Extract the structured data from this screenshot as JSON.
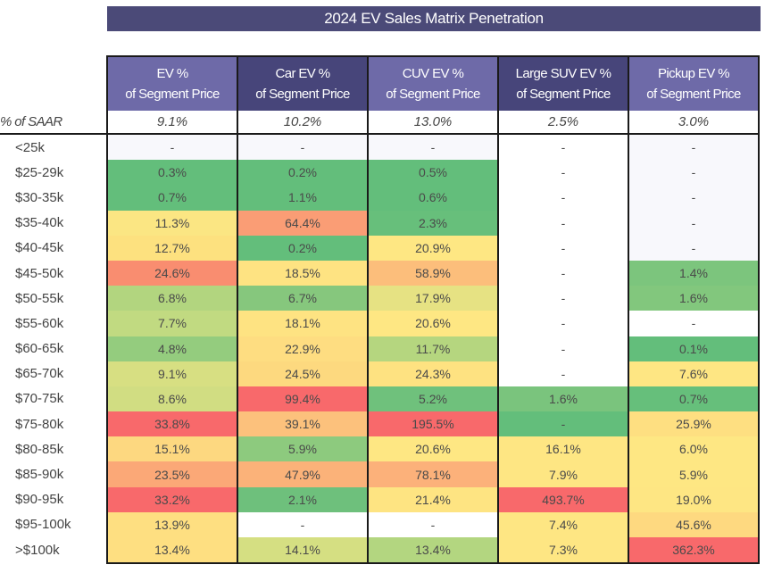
{
  "chart_data": {
    "type": "heatmap",
    "title": "2024 EV Sales Matrix Penetration",
    "columns": [
      {
        "line1": "EV %",
        "line2": "of Segment Price",
        "saar": "9.1%",
        "shade": "light"
      },
      {
        "line1": "Car EV %",
        "line2": "of Segment Price",
        "saar": "10.2%",
        "shade": "dark"
      },
      {
        "line1": "CUV EV %",
        "line2": "of Segment Price",
        "saar": "13.0%",
        "shade": "light"
      },
      {
        "line1": "Large SUV EV %",
        "line2": "of Segment Price",
        "saar": "2.5%",
        "shade": "dark"
      },
      {
        "line1": "Pickup EV %",
        "line2": "of Segment Price",
        "saar": "3.0%",
        "shade": "light"
      }
    ],
    "saar_label": "% of SAAR",
    "rows": [
      {
        "label": "<25k",
        "values": [
          "-",
          "-",
          "-",
          "-",
          "-"
        ]
      },
      {
        "label": "$25-29k",
        "values": [
          "0.3%",
          "0.2%",
          "0.5%",
          "-",
          "-"
        ]
      },
      {
        "label": "$30-35k",
        "values": [
          "0.7%",
          "1.1%",
          "0.6%",
          "-",
          "-"
        ]
      },
      {
        "label": "$35-40k",
        "values": [
          "11.3%",
          "64.4%",
          "2.3%",
          "-",
          "-"
        ]
      },
      {
        "label": "$40-45k",
        "values": [
          "12.7%",
          "0.2%",
          "20.9%",
          "-",
          "-"
        ]
      },
      {
        "label": "$45-50k",
        "values": [
          "24.6%",
          "18.5%",
          "58.9%",
          "-",
          "1.4%"
        ]
      },
      {
        "label": "$50-55k",
        "values": [
          "6.8%",
          "6.7%",
          "17.9%",
          "-",
          "1.6%"
        ]
      },
      {
        "label": "$55-60k",
        "values": [
          "7.7%",
          "18.1%",
          "20.6%",
          "-",
          "-"
        ]
      },
      {
        "label": "$60-65k",
        "values": [
          "4.8%",
          "22.9%",
          "11.7%",
          "-",
          "0.1%"
        ]
      },
      {
        "label": "$65-70k",
        "values": [
          "9.1%",
          "24.5%",
          "24.3%",
          "-",
          "7.6%"
        ]
      },
      {
        "label": "$70-75k",
        "values": [
          "8.6%",
          "99.4%",
          "5.2%",
          "1.6%",
          "0.7%"
        ]
      },
      {
        "label": "$75-80k",
        "values": [
          "33.8%",
          "39.1%",
          "195.5%",
          "-",
          "25.9%"
        ]
      },
      {
        "label": "$80-85k",
        "values": [
          "15.1%",
          "5.9%",
          "20.6%",
          "16.1%",
          "6.0%"
        ]
      },
      {
        "label": "$85-90k",
        "values": [
          "23.5%",
          "47.9%",
          "78.1%",
          "7.9%",
          "5.9%"
        ]
      },
      {
        "label": "$90-95k",
        "values": [
          "33.2%",
          "2.1%",
          "21.4%",
          "493.7%",
          "19.0%"
        ]
      },
      {
        "label": "$95-100k",
        "values": [
          "13.9%",
          "-",
          "-",
          "7.4%",
          "45.6%"
        ]
      },
      {
        "label": ">$100k",
        "values": [
          "13.4%",
          "14.1%",
          "13.4%",
          "7.3%",
          "362.3%"
        ]
      }
    ],
    "cell_colors": [
      [
        "#f8f8fc",
        "#f8f8fc",
        "#f8f8fc",
        "#ffffff",
        "#f8f8fc"
      ],
      [
        "#63be7b",
        "#63be7b",
        "#63be7b",
        "#ffffff",
        "#f8f8fc"
      ],
      [
        "#63be7b",
        "#63be7b",
        "#63be7b",
        "#ffffff",
        "#f8f8fc"
      ],
      [
        "#fbe683",
        "#fa9d75",
        "#67bf7b",
        "#ffffff",
        "#f8f8fc"
      ],
      [
        "#fde17f",
        "#63be7b",
        "#fee783",
        "#ffffff",
        "#f8f8fc"
      ],
      [
        "#f98d70",
        "#fee382",
        "#fcbe7b",
        "#ffffff",
        "#7cc57d"
      ],
      [
        "#b2d57f",
        "#86c77d",
        "#e6e283",
        "#ffffff",
        "#82c77d"
      ],
      [
        "#c1da81",
        "#fee382",
        "#fee783",
        "#ffffff",
        "#ffffff"
      ],
      [
        "#94cc7e",
        "#fedd81",
        "#b5d67f",
        "#ffffff",
        "#63be7b"
      ],
      [
        "#d7df82",
        "#fdd97f",
        "#fee281",
        "#ffffff",
        "#fee683"
      ],
      [
        "#d1dd82",
        "#f8696b",
        "#6fc17c",
        "#7ac47d",
        "#66bf7b"
      ],
      [
        "#f8696b",
        "#fcc17c",
        "#f8696b",
        "#63be7b",
        "#fedf81"
      ],
      [
        "#fdd880",
        "#8dca7e",
        "#fee783",
        "#fee683",
        "#fee783"
      ],
      [
        "#fba877",
        "#fbb279",
        "#fcb17a",
        "#fee683",
        "#fee783"
      ],
      [
        "#f8696b",
        "#6ec07c",
        "#fee482",
        "#f8696b",
        "#fee683"
      ],
      [
        "#fedf81",
        "#ffffff",
        "#ffffff",
        "#fee683",
        "#fed980"
      ],
      [
        "#fedf81",
        "#d5df82",
        "#b3d680",
        "#fee683",
        "#f8696b"
      ]
    ]
  }
}
